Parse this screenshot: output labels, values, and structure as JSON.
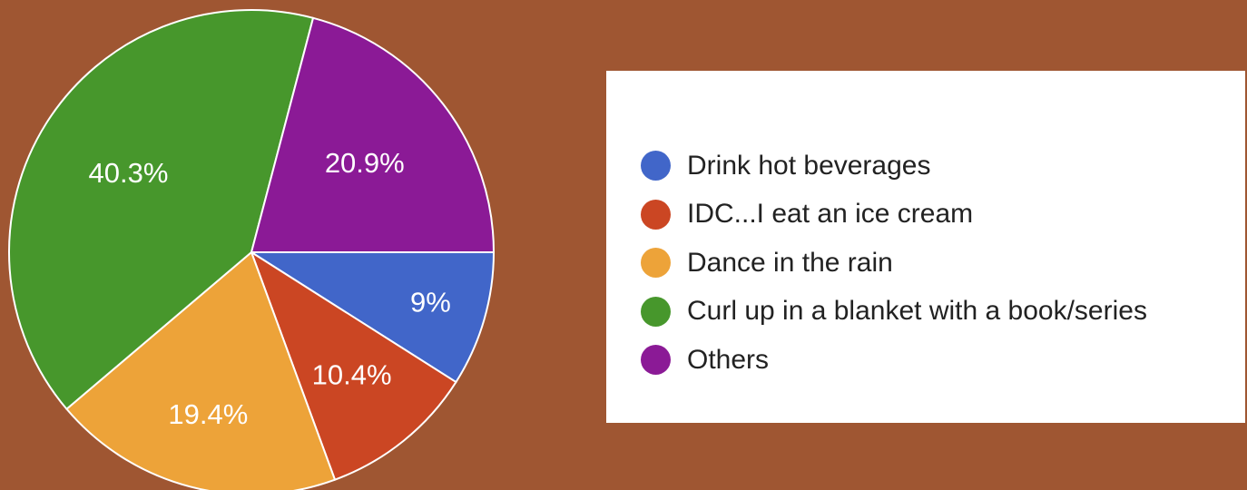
{
  "chart_data": {
    "type": "pie",
    "title": "",
    "legend_position": "right",
    "slices": [
      {
        "name": "Drink hot beverages",
        "value": 9,
        "label": "9%",
        "color": "#4166c9"
      },
      {
        "name": "IDC...I eat an ice cream",
        "value": 10.4,
        "label": "10.4%",
        "color": "#cb4623"
      },
      {
        "name": "Dance in the rain",
        "value": 19.4,
        "label": "19.4%",
        "color": "#eda339"
      },
      {
        "name": "Curl up in a blanket with a book/series",
        "value": 40.3,
        "label": "40.3%",
        "color": "#47972c"
      },
      {
        "name": "Others",
        "value": 20.9,
        "label": "20.9%",
        "color": "#8b1a96"
      }
    ]
  }
}
